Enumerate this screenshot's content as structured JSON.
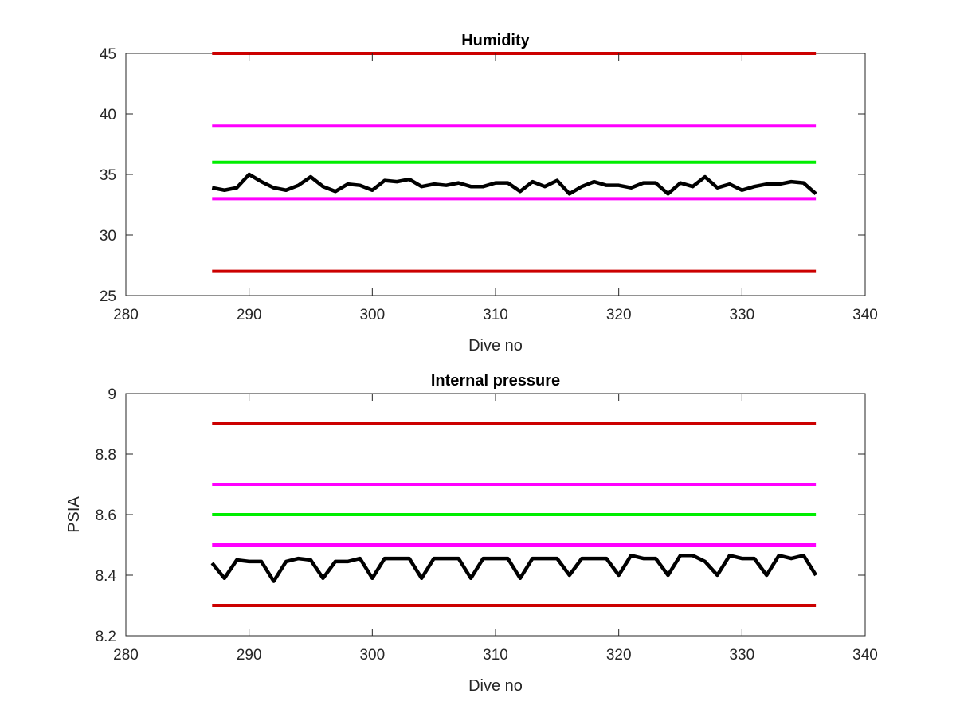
{
  "chart_data": [
    {
      "type": "line",
      "title": "Humidity",
      "xlabel": "Dive no",
      "ylabel": "",
      "xlim": [
        280,
        340
      ],
      "ylim": [
        25,
        45
      ],
      "xticks": [
        280,
        290,
        300,
        310,
        320,
        330,
        340
      ],
      "yticks": [
        25,
        30,
        35,
        40,
        45
      ],
      "grid": false,
      "series": [
        {
          "color": "#cc0000",
          "x": [
            287,
            336
          ],
          "y": [
            45,
            45
          ]
        },
        {
          "color": "#ff00ff",
          "x": [
            287,
            336
          ],
          "y": [
            39,
            39
          ]
        },
        {
          "color": "#00ee00",
          "x": [
            287,
            336
          ],
          "y": [
            36,
            36
          ]
        },
        {
          "color": "#ff00ff",
          "x": [
            287,
            336
          ],
          "y": [
            33,
            33
          ]
        },
        {
          "color": "#cc0000",
          "x": [
            287,
            336
          ],
          "y": [
            27,
            27
          ]
        },
        {
          "color": "#000000",
          "x": [
            287,
            288,
            289,
            290,
            291,
            292,
            293,
            294,
            295,
            296,
            297,
            298,
            299,
            300,
            301,
            302,
            303,
            304,
            305,
            306,
            307,
            308,
            309,
            310,
            311,
            312,
            313,
            314,
            315,
            316,
            317,
            318,
            319,
            320,
            321,
            322,
            323,
            324,
            325,
            326,
            327,
            328,
            329,
            330,
            331,
            332,
            333,
            334,
            335,
            336
          ],
          "y": [
            33.9,
            33.7,
            33.9,
            35.0,
            34.4,
            33.9,
            33.7,
            34.1,
            34.8,
            34.0,
            33.6,
            34.2,
            34.1,
            33.7,
            34.5,
            34.4,
            34.6,
            34.0,
            34.2,
            34.1,
            34.3,
            34.0,
            34.0,
            34.3,
            34.3,
            33.6,
            34.4,
            34.0,
            34.5,
            33.4,
            34.0,
            34.4,
            34.1,
            34.1,
            33.9,
            34.3,
            34.3,
            33.4,
            34.3,
            34.0,
            34.8,
            33.9,
            34.2,
            33.7,
            34.0,
            34.2,
            34.2,
            34.4,
            34.3,
            33.4
          ]
        }
      ]
    },
    {
      "type": "line",
      "title": "Internal pressure",
      "xlabel": "Dive no",
      "ylabel": "PSIA",
      "xlim": [
        280,
        340
      ],
      "ylim": [
        8.2,
        9
      ],
      "xticks": [
        280,
        290,
        300,
        310,
        320,
        330,
        340
      ],
      "yticks": [
        8.2,
        8.4,
        8.6,
        8.8,
        9
      ],
      "grid": false,
      "series": [
        {
          "color": "#cc0000",
          "x": [
            287,
            336
          ],
          "y": [
            8.9,
            8.9
          ]
        },
        {
          "color": "#ff00ff",
          "x": [
            287,
            336
          ],
          "y": [
            8.7,
            8.7
          ]
        },
        {
          "color": "#00ee00",
          "x": [
            287,
            336
          ],
          "y": [
            8.6,
            8.6
          ]
        },
        {
          "color": "#ff00ff",
          "x": [
            287,
            336
          ],
          "y": [
            8.5,
            8.5
          ]
        },
        {
          "color": "#cc0000",
          "x": [
            287,
            336
          ],
          "y": [
            8.3,
            8.3
          ]
        },
        {
          "color": "#000000",
          "x": [
            287,
            288,
            289,
            290,
            291,
            292,
            293,
            294,
            295,
            296,
            297,
            298,
            299,
            300,
            301,
            302,
            303,
            304,
            305,
            306,
            307,
            308,
            309,
            310,
            311,
            312,
            313,
            314,
            315,
            316,
            317,
            318,
            319,
            320,
            321,
            322,
            323,
            324,
            325,
            326,
            327,
            328,
            329,
            330,
            331,
            332,
            333,
            334,
            335,
            336
          ],
          "y": [
            8.44,
            8.39,
            8.45,
            8.445,
            8.445,
            8.38,
            8.445,
            8.455,
            8.45,
            8.39,
            8.445,
            8.445,
            8.455,
            8.39,
            8.455,
            8.455,
            8.455,
            8.39,
            8.455,
            8.455,
            8.455,
            8.39,
            8.455,
            8.455,
            8.455,
            8.39,
            8.455,
            8.455,
            8.455,
            8.4,
            8.455,
            8.455,
            8.455,
            8.4,
            8.465,
            8.455,
            8.455,
            8.4,
            8.465,
            8.465,
            8.445,
            8.4,
            8.465,
            8.455,
            8.455,
            8.4,
            8.465,
            8.455,
            8.465,
            8.4
          ]
        }
      ]
    }
  ]
}
